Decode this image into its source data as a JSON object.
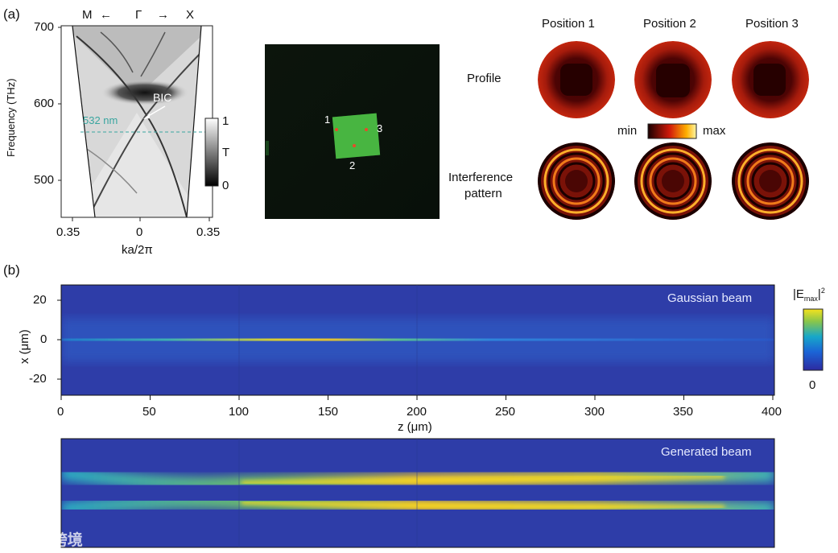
{
  "panel_a": {
    "label": "(a)",
    "band": {
      "top_left": "M",
      "top_center": "Γ",
      "top_right": "X",
      "arrow_left": "←",
      "arrow_right": "→",
      "ylabel": "Frequency (THz)",
      "yticks": [
        "700",
        "600",
        "500"
      ],
      "xticks": [
        "0.35",
        "0",
        "0.35"
      ],
      "xlabel": "ka/2π",
      "bic_label": "BIC",
      "line_label": "532 nm",
      "colorbar": {
        "top": "1",
        "mid": "T",
        "bottom": "0"
      }
    },
    "micrograph": {
      "markers": [
        "1",
        "2",
        "3"
      ]
    },
    "profiles": {
      "columns": [
        "Position 1",
        "Position 2",
        "Position 3"
      ],
      "row1": "Profile",
      "row2_line1": "Interference",
      "row2_line2": "pattern",
      "scale_min": "min",
      "scale_max": "max"
    }
  },
  "panel_b": {
    "label": "(b)",
    "top": {
      "title": "Gaussian beam",
      "ylabel": "x (μm)",
      "yticks": [
        "20",
        "0",
        "-20"
      ],
      "xlabel": "z (μm)",
      "xticks": [
        "0",
        "50",
        "100",
        "150",
        "200",
        "250",
        "300",
        "350",
        "400"
      ]
    },
    "bottom": {
      "title": "Generated beam"
    },
    "colorbar": {
      "title": "|E",
      "sub": "max",
      "sup": "2",
      "bottom": "0"
    }
  },
  "watermark": "大数跨境"
}
